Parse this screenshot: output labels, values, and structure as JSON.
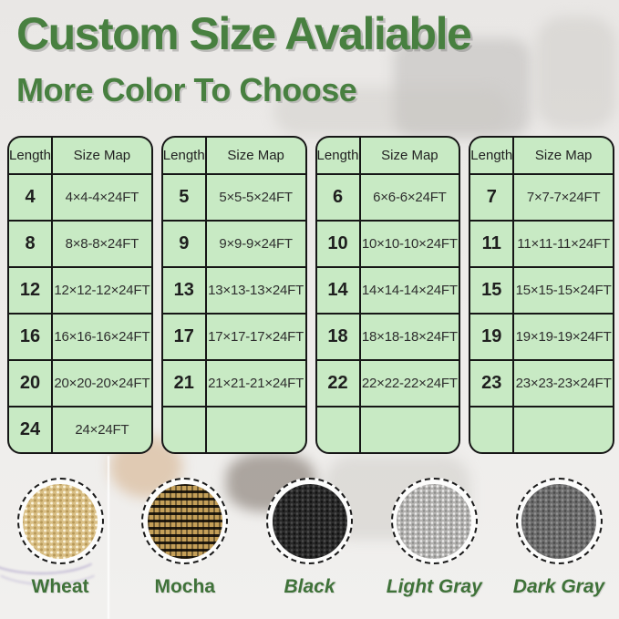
{
  "title": "Custom Size Avaliable",
  "subtitle": "More Color To Choose",
  "colors": {
    "title_green": "#488040",
    "label_green": "#3f7239",
    "table_background": "#c8eac4",
    "table_border": "#161616"
  },
  "table_header": {
    "length": "Length",
    "size_map": "Size Map"
  },
  "tables": [
    {
      "rows": [
        {
          "length": "4",
          "size": "4×4-4×24FT"
        },
        {
          "length": "8",
          "size": "8×8-8×24FT"
        },
        {
          "length": "12",
          "size": "12×12-12×24FT"
        },
        {
          "length": "16",
          "size": "16×16-16×24FT"
        },
        {
          "length": "20",
          "size": "20×20-20×24FT"
        },
        {
          "length": "24",
          "size": "24×24FT"
        }
      ]
    },
    {
      "rows": [
        {
          "length": "5",
          "size": "5×5-5×24FT"
        },
        {
          "length": "9",
          "size": "9×9-9×24FT"
        },
        {
          "length": "13",
          "size": "13×13-13×24FT"
        },
        {
          "length": "17",
          "size": "17×17-17×24FT"
        },
        {
          "length": "21",
          "size": "21×21-21×24FT"
        },
        {
          "length": "",
          "size": ""
        }
      ]
    },
    {
      "rows": [
        {
          "length": "6",
          "size": "6×6-6×24FT"
        },
        {
          "length": "10",
          "size": "10×10-10×24FT"
        },
        {
          "length": "14",
          "size": "14×14-14×24FT"
        },
        {
          "length": "18",
          "size": "18×18-18×24FT"
        },
        {
          "length": "22",
          "size": "22×22-22×24FT"
        },
        {
          "length": "",
          "size": ""
        }
      ]
    },
    {
      "rows": [
        {
          "length": "7",
          "size": "7×7-7×24FT"
        },
        {
          "length": "11",
          "size": "11×11-11×24FT"
        },
        {
          "length": "15",
          "size": "15×15-15×24FT"
        },
        {
          "length": "19",
          "size": "19×19-19×24FT"
        },
        {
          "length": "23",
          "size": "23×23-23×24FT"
        },
        {
          "length": "",
          "size": ""
        }
      ]
    }
  ],
  "swatches": [
    {
      "label": "Wheat",
      "color": "#d9bf85"
    },
    {
      "label": "Mocha",
      "color": "#c49f58"
    },
    {
      "label": "Black",
      "color": "#2a2a2a"
    },
    {
      "label": "Light Gray",
      "color": "#b4b3b1"
    },
    {
      "label": "Dark Gray",
      "color": "#6d6d6d"
    }
  ]
}
